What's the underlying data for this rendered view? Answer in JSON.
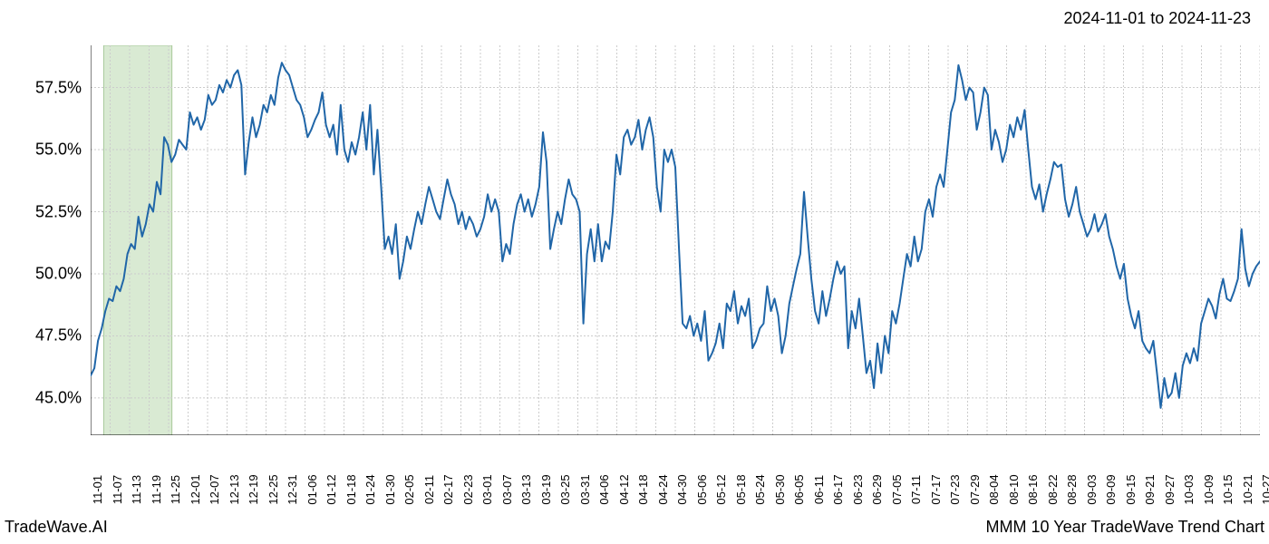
{
  "header": {
    "date_range": "2024-11-01 to 2024-11-23"
  },
  "footer": {
    "brand": "TradeWave.AI",
    "title": "MMM 10 Year TradeWave Trend Chart"
  },
  "chart": {
    "type": "line",
    "background_color": "#ffffff",
    "grid_color": "#cccccc",
    "grid_dash": "2,2",
    "line_color": "#2066a8",
    "line_width": 2,
    "highlight_band": {
      "fill": "#d9ead3",
      "stroke": "#a8c99a",
      "x_start": "11-05",
      "x_end": "11-26"
    },
    "xlim": [
      "11-01",
      "10-31"
    ],
    "ylim": [
      43.5,
      59.2
    ],
    "y_ticks": [
      45.0,
      47.5,
      50.0,
      52.5,
      55.0,
      57.5
    ],
    "y_tick_labels": [
      "45.0%",
      "47.5%",
      "50.0%",
      "52.5%",
      "55.0%",
      "57.5%"
    ],
    "y_label_fontsize": 18,
    "x_tick_labels": [
      "11-01",
      "11-07",
      "11-13",
      "11-19",
      "11-25",
      "12-01",
      "12-07",
      "12-13",
      "12-19",
      "12-25",
      "12-31",
      "01-06",
      "01-12",
      "01-18",
      "01-24",
      "01-30",
      "02-05",
      "02-11",
      "02-17",
      "02-23",
      "03-01",
      "03-07",
      "03-13",
      "03-19",
      "03-25",
      "03-31",
      "04-06",
      "04-12",
      "04-18",
      "04-24",
      "04-30",
      "05-06",
      "05-12",
      "05-18",
      "05-24",
      "05-30",
      "06-05",
      "06-11",
      "06-17",
      "06-23",
      "06-29",
      "07-05",
      "07-11",
      "07-17",
      "07-23",
      "07-29",
      "08-04",
      "08-10",
      "08-16",
      "08-22",
      "08-28",
      "09-03",
      "09-09",
      "09-15",
      "09-21",
      "09-27",
      "10-03",
      "10-09",
      "10-15",
      "10-21",
      "10-27"
    ],
    "x_label_fontsize": 13,
    "data": [
      45.9,
      46.2,
      47.3,
      47.8,
      48.5,
      49.0,
      48.9,
      49.5,
      49.3,
      49.8,
      50.8,
      51.2,
      51.0,
      52.3,
      51.5,
      52.0,
      52.8,
      52.5,
      53.7,
      53.2,
      55.5,
      55.2,
      54.5,
      54.8,
      55.4,
      55.2,
      55.0,
      56.5,
      56.0,
      56.3,
      55.8,
      56.2,
      57.2,
      56.8,
      57.0,
      57.6,
      57.3,
      57.8,
      57.5,
      58.0,
      58.2,
      57.6,
      54.0,
      55.3,
      56.3,
      55.5,
      56.0,
      56.8,
      56.5,
      57.2,
      56.8,
      57.9,
      58.5,
      58.2,
      58.0,
      57.5,
      57.0,
      56.8,
      56.3,
      55.5,
      55.8,
      56.2,
      56.5,
      57.3,
      56.0,
      55.5,
      56.0,
      54.8,
      56.8,
      55.0,
      54.5,
      55.3,
      54.8,
      55.5,
      56.5,
      55.0,
      56.8,
      54.0,
      55.8,
      53.5,
      51.0,
      51.5,
      50.8,
      52.0,
      49.8,
      50.5,
      51.5,
      51.0,
      51.8,
      52.5,
      52.0,
      52.8,
      53.5,
      53.0,
      52.5,
      52.2,
      53.0,
      53.8,
      53.2,
      52.8,
      52.0,
      52.5,
      51.8,
      52.3,
      52.0,
      51.5,
      51.8,
      52.3,
      53.2,
      52.5,
      53.0,
      52.5,
      50.5,
      51.2,
      50.8,
      52.0,
      52.8,
      53.2,
      52.5,
      53.0,
      52.3,
      52.8,
      53.5,
      55.7,
      54.5,
      51.0,
      51.8,
      52.5,
      52.0,
      53.0,
      53.8,
      53.2,
      53.0,
      52.5,
      48.0,
      50.8,
      51.8,
      50.5,
      52.0,
      50.5,
      51.3,
      51.0,
      52.5,
      54.8,
      54.0,
      55.5,
      55.8,
      55.2,
      55.5,
      56.2,
      55.0,
      55.8,
      56.3,
      55.5,
      53.5,
      52.5,
      55.0,
      54.5,
      55.0,
      54.3,
      51.0,
      48.0,
      47.8,
      48.3,
      47.5,
      48.0,
      47.3,
      48.5,
      46.5,
      46.8,
      47.2,
      48.0,
      47.0,
      48.8,
      48.5,
      49.3,
      48.0,
      48.7,
      48.3,
      49.0,
      47.0,
      47.3,
      47.8,
      48.0,
      49.5,
      48.5,
      49.0,
      48.3,
      46.8,
      47.5,
      48.8,
      49.5,
      50.2,
      50.8,
      53.3,
      51.5,
      49.8,
      48.5,
      48.0,
      49.3,
      48.3,
      49.0,
      49.8,
      50.5,
      50.0,
      50.3,
      47.0,
      48.5,
      47.8,
      49.0,
      47.5,
      46.0,
      46.5,
      45.4,
      47.2,
      46.0,
      47.5,
      46.8,
      48.5,
      48.0,
      48.8,
      49.8,
      50.8,
      50.3,
      51.5,
      50.5,
      51.0,
      52.5,
      53.0,
      52.3,
      53.5,
      54.0,
      53.5,
      55.0,
      56.5,
      57.0,
      58.4,
      57.8,
      57.0,
      57.5,
      57.3,
      55.8,
      56.5,
      57.5,
      57.2,
      55.0,
      55.8,
      55.3,
      54.5,
      55.0,
      56.0,
      55.5,
      56.3,
      55.8,
      56.6,
      55.0,
      53.5,
      53.0,
      53.6,
      52.5,
      53.2,
      53.8,
      54.5,
      54.3,
      54.4,
      53.0,
      52.3,
      52.8,
      53.5,
      52.5,
      52.0,
      51.5,
      51.8,
      52.4,
      51.7,
      52.0,
      52.4,
      51.5,
      51.0,
      50.3,
      49.8,
      50.4,
      49.0,
      48.3,
      47.8,
      48.5,
      47.3,
      47.0,
      46.8,
      47.3,
      46.0,
      44.6,
      45.8,
      45.0,
      45.2,
      46.0,
      45.0,
      46.3,
      46.8,
      46.4,
      47.0,
      46.5,
      48.0,
      48.5,
      49.0,
      48.7,
      48.2,
      49.2,
      49.8,
      49.0,
      48.9,
      49.3,
      49.8,
      51.8,
      50.2,
      49.5,
      50.0,
      50.3,
      50.5
    ]
  }
}
